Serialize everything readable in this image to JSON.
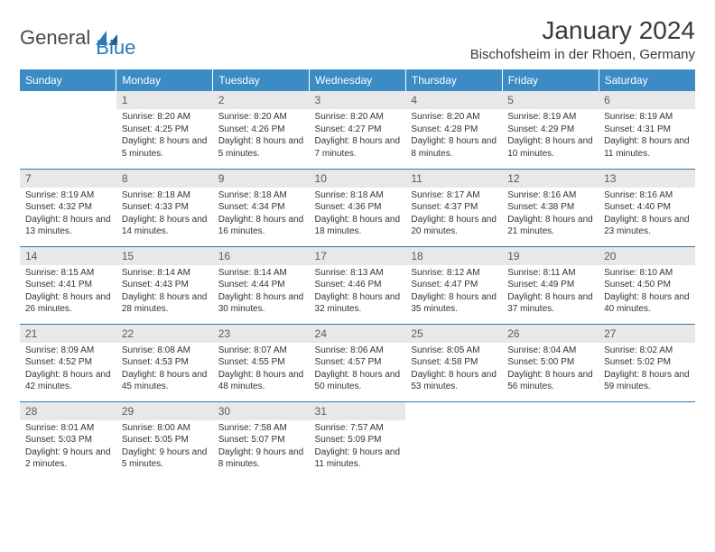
{
  "logo": {
    "word1": "General",
    "word2": "Blue"
  },
  "title": "January 2024",
  "location": "Bischofsheim in der Rhoen, Germany",
  "colors": {
    "header_bg": "#3b8bc4",
    "header_text": "#ffffff",
    "daynum_bg": "#e8e8e8",
    "rule": "#2a7ab8",
    "brand_blue": "#2a7ab8",
    "brand_grey": "#4a4a4a"
  },
  "weekdays": [
    "Sunday",
    "Monday",
    "Tuesday",
    "Wednesday",
    "Thursday",
    "Friday",
    "Saturday"
  ],
  "weeks": [
    [
      {
        "n": "",
        "sr": "",
        "ss": "",
        "dl": ""
      },
      {
        "n": "1",
        "sr": "Sunrise: 8:20 AM",
        "ss": "Sunset: 4:25 PM",
        "dl": "Daylight: 8 hours and 5 minutes."
      },
      {
        "n": "2",
        "sr": "Sunrise: 8:20 AM",
        "ss": "Sunset: 4:26 PM",
        "dl": "Daylight: 8 hours and 5 minutes."
      },
      {
        "n": "3",
        "sr": "Sunrise: 8:20 AM",
        "ss": "Sunset: 4:27 PM",
        "dl": "Daylight: 8 hours and 7 minutes."
      },
      {
        "n": "4",
        "sr": "Sunrise: 8:20 AM",
        "ss": "Sunset: 4:28 PM",
        "dl": "Daylight: 8 hours and 8 minutes."
      },
      {
        "n": "5",
        "sr": "Sunrise: 8:19 AM",
        "ss": "Sunset: 4:29 PM",
        "dl": "Daylight: 8 hours and 10 minutes."
      },
      {
        "n": "6",
        "sr": "Sunrise: 8:19 AM",
        "ss": "Sunset: 4:31 PM",
        "dl": "Daylight: 8 hours and 11 minutes."
      }
    ],
    [
      {
        "n": "7",
        "sr": "Sunrise: 8:19 AM",
        "ss": "Sunset: 4:32 PM",
        "dl": "Daylight: 8 hours and 13 minutes."
      },
      {
        "n": "8",
        "sr": "Sunrise: 8:18 AM",
        "ss": "Sunset: 4:33 PM",
        "dl": "Daylight: 8 hours and 14 minutes."
      },
      {
        "n": "9",
        "sr": "Sunrise: 8:18 AM",
        "ss": "Sunset: 4:34 PM",
        "dl": "Daylight: 8 hours and 16 minutes."
      },
      {
        "n": "10",
        "sr": "Sunrise: 8:18 AM",
        "ss": "Sunset: 4:36 PM",
        "dl": "Daylight: 8 hours and 18 minutes."
      },
      {
        "n": "11",
        "sr": "Sunrise: 8:17 AM",
        "ss": "Sunset: 4:37 PM",
        "dl": "Daylight: 8 hours and 20 minutes."
      },
      {
        "n": "12",
        "sr": "Sunrise: 8:16 AM",
        "ss": "Sunset: 4:38 PM",
        "dl": "Daylight: 8 hours and 21 minutes."
      },
      {
        "n": "13",
        "sr": "Sunrise: 8:16 AM",
        "ss": "Sunset: 4:40 PM",
        "dl": "Daylight: 8 hours and 23 minutes."
      }
    ],
    [
      {
        "n": "14",
        "sr": "Sunrise: 8:15 AM",
        "ss": "Sunset: 4:41 PM",
        "dl": "Daylight: 8 hours and 26 minutes."
      },
      {
        "n": "15",
        "sr": "Sunrise: 8:14 AM",
        "ss": "Sunset: 4:43 PM",
        "dl": "Daylight: 8 hours and 28 minutes."
      },
      {
        "n": "16",
        "sr": "Sunrise: 8:14 AM",
        "ss": "Sunset: 4:44 PM",
        "dl": "Daylight: 8 hours and 30 minutes."
      },
      {
        "n": "17",
        "sr": "Sunrise: 8:13 AM",
        "ss": "Sunset: 4:46 PM",
        "dl": "Daylight: 8 hours and 32 minutes."
      },
      {
        "n": "18",
        "sr": "Sunrise: 8:12 AM",
        "ss": "Sunset: 4:47 PM",
        "dl": "Daylight: 8 hours and 35 minutes."
      },
      {
        "n": "19",
        "sr": "Sunrise: 8:11 AM",
        "ss": "Sunset: 4:49 PM",
        "dl": "Daylight: 8 hours and 37 minutes."
      },
      {
        "n": "20",
        "sr": "Sunrise: 8:10 AM",
        "ss": "Sunset: 4:50 PM",
        "dl": "Daylight: 8 hours and 40 minutes."
      }
    ],
    [
      {
        "n": "21",
        "sr": "Sunrise: 8:09 AM",
        "ss": "Sunset: 4:52 PM",
        "dl": "Daylight: 8 hours and 42 minutes."
      },
      {
        "n": "22",
        "sr": "Sunrise: 8:08 AM",
        "ss": "Sunset: 4:53 PM",
        "dl": "Daylight: 8 hours and 45 minutes."
      },
      {
        "n": "23",
        "sr": "Sunrise: 8:07 AM",
        "ss": "Sunset: 4:55 PM",
        "dl": "Daylight: 8 hours and 48 minutes."
      },
      {
        "n": "24",
        "sr": "Sunrise: 8:06 AM",
        "ss": "Sunset: 4:57 PM",
        "dl": "Daylight: 8 hours and 50 minutes."
      },
      {
        "n": "25",
        "sr": "Sunrise: 8:05 AM",
        "ss": "Sunset: 4:58 PM",
        "dl": "Daylight: 8 hours and 53 minutes."
      },
      {
        "n": "26",
        "sr": "Sunrise: 8:04 AM",
        "ss": "Sunset: 5:00 PM",
        "dl": "Daylight: 8 hours and 56 minutes."
      },
      {
        "n": "27",
        "sr": "Sunrise: 8:02 AM",
        "ss": "Sunset: 5:02 PM",
        "dl": "Daylight: 8 hours and 59 minutes."
      }
    ],
    [
      {
        "n": "28",
        "sr": "Sunrise: 8:01 AM",
        "ss": "Sunset: 5:03 PM",
        "dl": "Daylight: 9 hours and 2 minutes."
      },
      {
        "n": "29",
        "sr": "Sunrise: 8:00 AM",
        "ss": "Sunset: 5:05 PM",
        "dl": "Daylight: 9 hours and 5 minutes."
      },
      {
        "n": "30",
        "sr": "Sunrise: 7:58 AM",
        "ss": "Sunset: 5:07 PM",
        "dl": "Daylight: 9 hours and 8 minutes."
      },
      {
        "n": "31",
        "sr": "Sunrise: 7:57 AM",
        "ss": "Sunset: 5:09 PM",
        "dl": "Daylight: 9 hours and 11 minutes."
      },
      {
        "n": "",
        "sr": "",
        "ss": "",
        "dl": ""
      },
      {
        "n": "",
        "sr": "",
        "ss": "",
        "dl": ""
      },
      {
        "n": "",
        "sr": "",
        "ss": "",
        "dl": ""
      }
    ]
  ]
}
